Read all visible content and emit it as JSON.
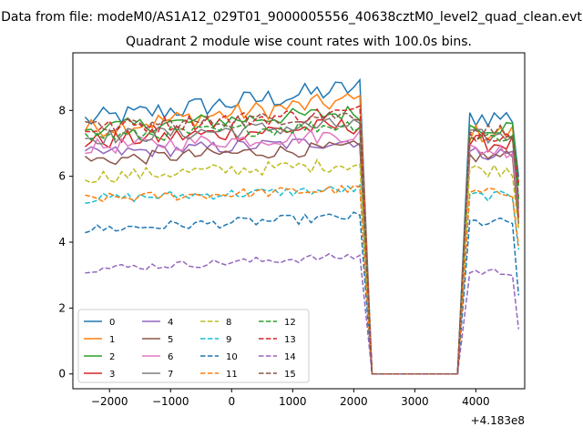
{
  "figure": {
    "suptitle": "Data from file: modeM0/AS1A12_029T01_9000005556_40638cztM0_level2_quad_clean.evt"
  },
  "chart_data": {
    "type": "line",
    "title": "Quadrant 2 module wise count rates with 100.0s bins.",
    "xlabel": "",
    "ylabel": "",
    "x_offset_label": "+4.183e8",
    "xlim": [
      -2600,
      4800
    ],
    "ylim": [
      -0.45,
      9.75
    ],
    "xticks": [
      -2000,
      -1000,
      0,
      1000,
      2000,
      3000,
      4000
    ],
    "xtick_labels": [
      "−2000",
      "−1000",
      "0",
      "1000",
      "2000",
      "3000",
      "4000"
    ],
    "yticks": [
      0,
      2,
      4,
      6,
      8
    ],
    "ytick_labels": [
      "0",
      "2",
      "4",
      "6",
      "8"
    ],
    "grid": false,
    "legend_placement": "lower-left",
    "legend_columns": 4,
    "x_segments": [
      [
        -2400,
        2100
      ],
      [
        2300,
        3700
      ],
      [
        3900,
        4650
      ]
    ],
    "series": [
      {
        "name": "0",
        "color": "#1f77b4",
        "dash": "solid",
        "level": 8.0,
        "gap_to": 0.0,
        "after": 7.8,
        "noise": 0.55,
        "trend": 1.0
      },
      {
        "name": "1",
        "color": "#ff7f0e",
        "dash": "solid",
        "level": 7.7,
        "gap_to": 0.0,
        "after": 7.3,
        "noise": 0.5,
        "trend": 0.9
      },
      {
        "name": "2",
        "color": "#2ca02c",
        "dash": "solid",
        "level": 7.6,
        "gap_to": 0.0,
        "after": 7.5,
        "noise": 0.4,
        "trend": 0.5
      },
      {
        "name": "3",
        "color": "#d62728",
        "dash": "solid",
        "level": 7.2,
        "gap_to": 0.0,
        "after": 7.0,
        "noise": 0.45,
        "trend": 0.5
      },
      {
        "name": "4",
        "color": "#9467bd",
        "dash": "solid",
        "level": 6.8,
        "gap_to": 0.0,
        "after": 6.7,
        "noise": 0.35,
        "trend": 0.4
      },
      {
        "name": "5",
        "color": "#8c564b",
        "dash": "solid",
        "level": 6.6,
        "gap_to": 0.0,
        "after": 6.6,
        "noise": 0.35,
        "trend": 0.4
      },
      {
        "name": "6",
        "color": "#e377c2",
        "dash": "solid",
        "level": 7.0,
        "gap_to": 0.0,
        "after": 6.8,
        "noise": 0.4,
        "trend": 0.4
      },
      {
        "name": "7",
        "color": "#7f7f7f",
        "dash": "solid",
        "level": 7.3,
        "gap_to": 0.0,
        "after": 7.2,
        "noise": 0.4,
        "trend": 0.4
      },
      {
        "name": "8",
        "color": "#bcbd22",
        "dash": "dashed",
        "level": 6.1,
        "gap_to": 0.0,
        "after": 6.2,
        "noise": 0.35,
        "trend": 0.4
      },
      {
        "name": "9",
        "color": "#17becf",
        "dash": "dashed",
        "level": 5.4,
        "gap_to": 0.0,
        "after": 5.4,
        "noise": 0.25,
        "trend": 0.3
      },
      {
        "name": "10",
        "color": "#1f77b4",
        "dash": "dashed",
        "level": 4.5,
        "gap_to": 0.0,
        "after": 4.6,
        "noise": 0.25,
        "trend": 0.4
      },
      {
        "name": "11",
        "color": "#ff7f0e",
        "dash": "dashed",
        "level": 5.4,
        "gap_to": 0.0,
        "after": 5.5,
        "noise": 0.25,
        "trend": 0.3
      },
      {
        "name": "12",
        "color": "#2ca02c",
        "dash": "dashed",
        "level": 7.3,
        "gap_to": 0.0,
        "after": 7.2,
        "noise": 0.35,
        "trend": 0.4
      },
      {
        "name": "13",
        "color": "#d62728",
        "dash": "dashed",
        "level": 7.6,
        "gap_to": 0.0,
        "after": 7.3,
        "noise": 0.4,
        "trend": 0.5
      },
      {
        "name": "14",
        "color": "#9467bd",
        "dash": "dashed",
        "level": 3.3,
        "gap_to": 0.0,
        "after": 3.1,
        "noise": 0.2,
        "trend": 0.4
      },
      {
        "name": "15",
        "color": "#8c564b",
        "dash": "dashed",
        "level": 7.6,
        "gap_to": 0.0,
        "after": 7.4,
        "noise": 0.35,
        "trend": 0.4
      }
    ]
  }
}
